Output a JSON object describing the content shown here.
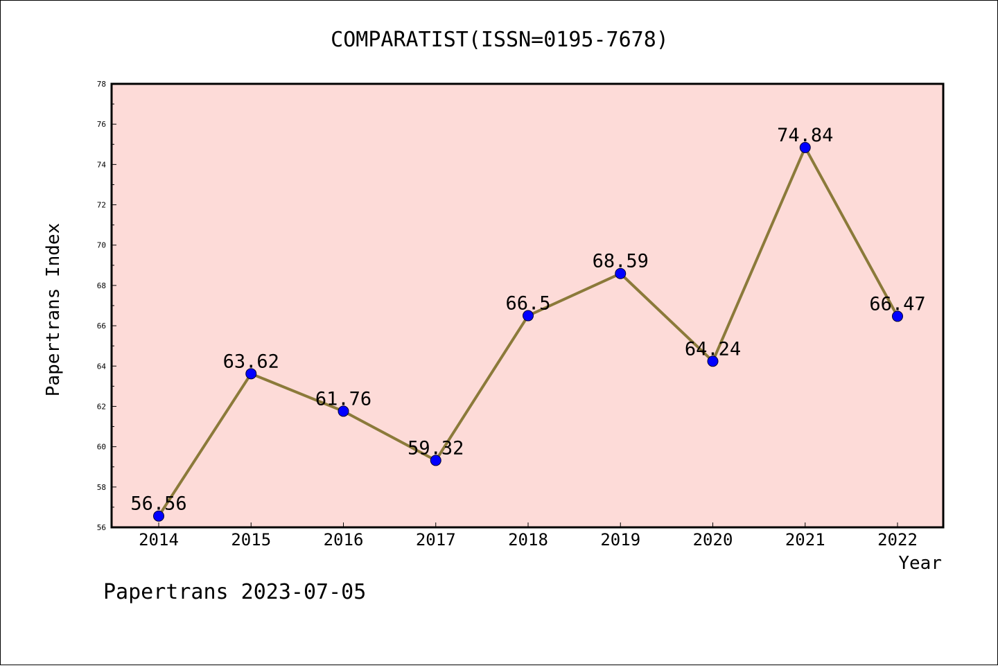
{
  "chart_data": {
    "type": "line",
    "title": "COMPARATIST(ISSN=0195-7678)",
    "xlabel": "Year",
    "ylabel": "Papertrans Index",
    "categories": [
      "2014",
      "2015",
      "2016",
      "2017",
      "2018",
      "2019",
      "2020",
      "2021",
      "2022"
    ],
    "series": [
      {
        "values": [
          56.56,
          63.62,
          61.76,
          59.32,
          66.5,
          68.59,
          64.24,
          74.84,
          66.47
        ],
        "data_labels": [
          "56.56",
          "63.62",
          "61.76",
          "59.32",
          "66.5",
          "68.59",
          "64.24",
          "74.84",
          "66.47"
        ]
      }
    ],
    "ylim": [
      56,
      78
    ],
    "yticks": [
      "56",
      "58",
      "60",
      "62",
      "64",
      "66",
      "68",
      "70",
      "72",
      "74",
      "76",
      "78"
    ],
    "grid": false,
    "colors": {
      "plot_background": "#fddbd8",
      "line": "#8b7a3a",
      "marker": "#0000ff"
    }
  },
  "footer": {
    "text": "Papertrans 2023-07-05"
  }
}
